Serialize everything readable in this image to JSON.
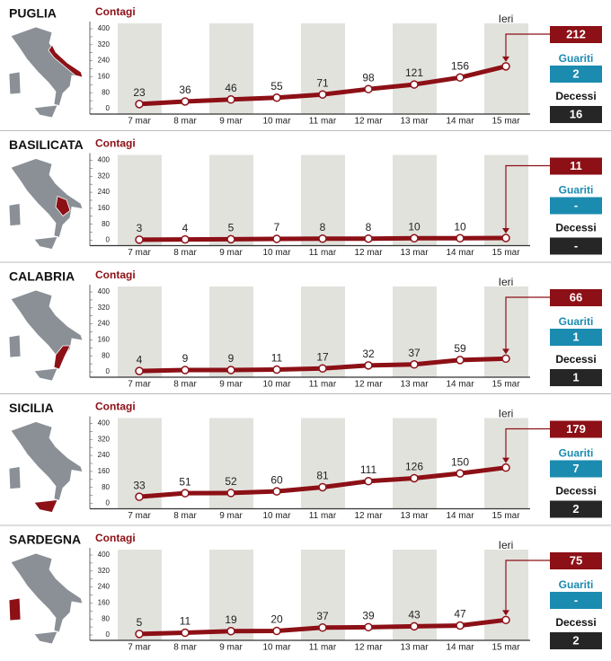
{
  "chart_data": [
    {
      "type": "line",
      "title": "PUGLIA",
      "subtitle": "Contagi",
      "annotation": "Ieri",
      "categories": [
        "7 mar",
        "8 mar",
        "9 mar",
        "10 mar",
        "11 mar",
        "12 mar",
        "13 mar",
        "14 mar",
        "15 mar"
      ],
      "values": [
        23,
        36,
        46,
        55,
        71,
        98,
        121,
        156,
        212
      ],
      "color": "#8c1016",
      "ylim": [
        0,
        400
      ],
      "yticks": [
        0,
        40,
        80,
        120,
        160,
        200,
        240,
        280,
        320,
        360,
        400
      ],
      "recovered_label": "Guariti",
      "recovered": 2,
      "deaths_label": "Decessi",
      "deaths": 16
    },
    {
      "type": "line",
      "title": "BASILICATA",
      "subtitle": "Contagi",
      "categories": [
        "7 mar",
        "8 mar",
        "9 mar",
        "10 mar",
        "11 mar",
        "12 mar",
        "13 mar",
        "14 mar",
        "15 mar"
      ],
      "values": [
        3,
        4,
        5,
        7,
        8,
        8,
        10,
        10,
        11
      ],
      "color": "#8c1016",
      "ylim": [
        0,
        400
      ],
      "yticks": [
        0,
        40,
        80,
        120,
        160,
        200,
        240,
        280,
        320,
        360,
        400
      ],
      "recovered_label": "Guariti",
      "recovered": "-",
      "deaths_label": "Decessi",
      "deaths": "-"
    },
    {
      "type": "line",
      "title": "CALABRIA",
      "subtitle": "Contagi",
      "annotation": "Ieri",
      "categories": [
        "7 mar",
        "8 mar",
        "9 mar",
        "10 mar",
        "11 mar",
        "12 mar",
        "13 mar",
        "14 mar",
        "15 mar"
      ],
      "values": [
        4,
        9,
        9,
        11,
        17,
        32,
        37,
        59,
        66
      ],
      "color": "#8c1016",
      "ylim": [
        0,
        400
      ],
      "yticks": [
        0,
        40,
        80,
        120,
        160,
        200,
        240,
        280,
        320,
        360,
        400
      ],
      "recovered_label": "Guariti",
      "recovered": 1,
      "deaths_label": "Decessi",
      "deaths": 1
    },
    {
      "type": "line",
      "title": "SICILIA",
      "subtitle": "Contagi",
      "annotation": "Ieri",
      "categories": [
        "7 mar",
        "8 mar",
        "9 mar",
        "10 mar",
        "11 mar",
        "12 mar",
        "13 mar",
        "14 mar",
        "15 mar"
      ],
      "values": [
        33,
        51,
        52,
        60,
        81,
        111,
        126,
        150,
        179
      ],
      "color": "#8c1016",
      "ylim": [
        0,
        400
      ],
      "yticks": [
        0,
        40,
        80,
        120,
        160,
        200,
        240,
        280,
        320,
        360,
        400
      ],
      "recovered_label": "Guariti",
      "recovered": 7,
      "deaths_label": "Decessi",
      "deaths": 2
    },
    {
      "type": "line",
      "title": "SARDEGNA",
      "subtitle": "Contagi",
      "annotation": "Ieri",
      "categories": [
        "7 mar",
        "8 mar",
        "9 mar",
        "10 mar",
        "11 mar",
        "12 mar",
        "13 mar",
        "14 mar",
        "15 mar"
      ],
      "values": [
        5,
        11,
        19,
        20,
        37,
        39,
        43,
        47,
        75
      ],
      "color": "#8c1016",
      "ylim": [
        0,
        400
      ],
      "yticks": [
        0,
        40,
        80,
        120,
        160,
        200,
        240,
        280,
        320,
        360,
        400
      ],
      "recovered_label": "Guariti",
      "recovered": "-",
      "deaths_label": "Decessi",
      "deaths": 2
    }
  ]
}
